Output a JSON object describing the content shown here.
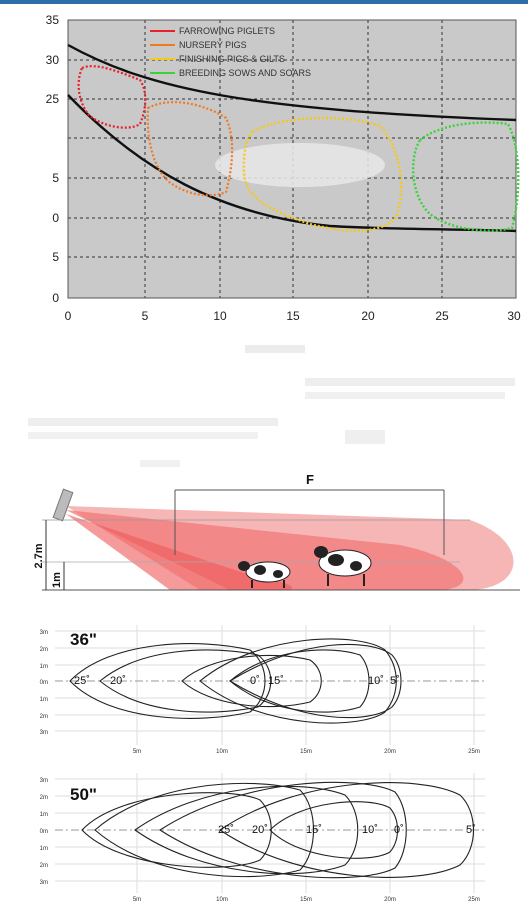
{
  "chart_data": {
    "type": "area",
    "x_ticks": [
      "0",
      "5",
      "10",
      "15",
      "20",
      "25",
      "30"
    ],
    "y_ticks": [
      "35",
      "30",
      "25",
      "",
      "5",
      "0",
      "5",
      "0"
    ],
    "legend": [
      {
        "label": "FARROWING PIGLETS",
        "color": "#e8202a"
      },
      {
        "label": "NURSERY PIGS",
        "color": "#f07a22"
      },
      {
        "label": "FINISHING PIGS & GILTS",
        "color": "#f5c81a"
      },
      {
        "label": "BREEDING SOWS AND SOARS",
        "color": "#3cd23c"
      }
    ],
    "grid": true,
    "legend_position": "top-center"
  },
  "beam_diagram": {
    "f_label": "F",
    "height_high": "2.7m",
    "height_low": "1m"
  },
  "plot_36": {
    "title": "36\"",
    "y_ticks": [
      "3m",
      "2m",
      "1m",
      "0m",
      "1m",
      "2m",
      "3m"
    ],
    "x_ticks": [
      "5m",
      "10m",
      "15m",
      "20m",
      "25m"
    ],
    "angles": [
      "25˚",
      "20˚",
      "0˚",
      "15˚",
      "10˚",
      "5˚"
    ]
  },
  "plot_50": {
    "title": "50\"",
    "y_ticks": [
      "3m",
      "2m",
      "1m",
      "0m",
      "1m",
      "2m",
      "3m"
    ],
    "x_ticks": [
      "5m",
      "10m",
      "15m",
      "20m",
      "25m"
    ],
    "angles": [
      "25˚",
      "20˚",
      "15˚",
      "10˚",
      "0˚",
      "5˚"
    ]
  }
}
